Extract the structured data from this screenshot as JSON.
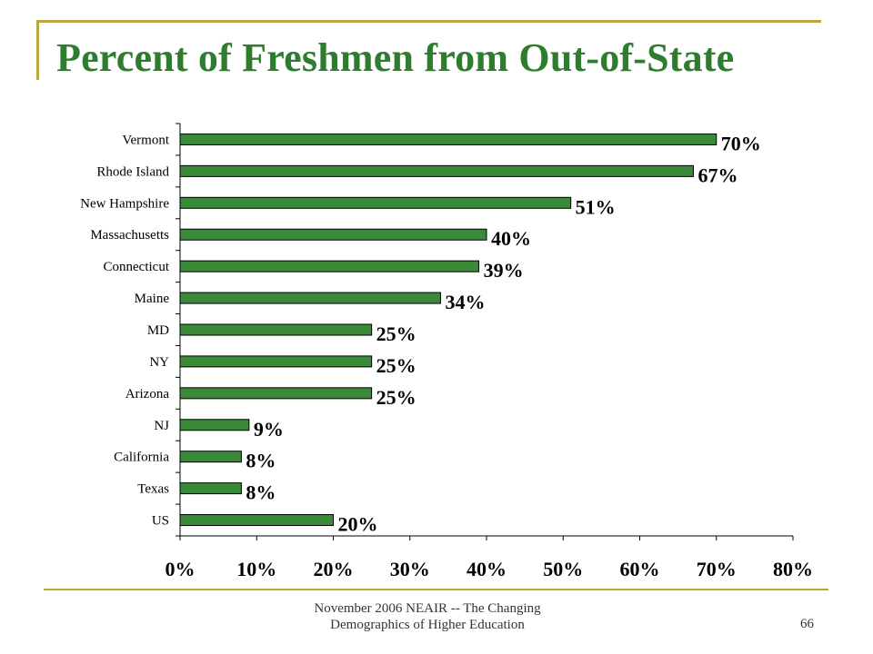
{
  "slide": {
    "title": "Percent of Freshmen from Out-of-State",
    "footer_line1": "November 2006 NEAIR -- The Changing",
    "footer_line2": "Demographics of Higher Education",
    "page_number": "66"
  },
  "colors": {
    "bar": "#3a8a3a",
    "title": "#2e7d2e",
    "rule": "#b8a640"
  },
  "chart_data": {
    "type": "bar",
    "orientation": "horizontal",
    "title": "",
    "xlabel": "",
    "ylabel": "",
    "xlim": [
      0,
      80
    ],
    "grid": false,
    "legend": "none",
    "x_ticks": [
      "0%",
      "10%",
      "20%",
      "30%",
      "40%",
      "50%",
      "60%",
      "70%",
      "80%"
    ],
    "categories": [
      "Vermont",
      "Rhode Island",
      "New Hampshire",
      "Massachusetts",
      "Connecticut",
      "Maine",
      "MD",
      "NY",
      "Arizona",
      "NJ",
      "California",
      "Texas",
      "US"
    ],
    "values": [
      70,
      67,
      51,
      40,
      39,
      34,
      25,
      25,
      25,
      9,
      8,
      8,
      20
    ],
    "value_labels": [
      "70%",
      "67%",
      "51%",
      "40%",
      "39%",
      "34%",
      "25%",
      "25%",
      "25%",
      "9%",
      "8%",
      "8%",
      "20%"
    ]
  }
}
